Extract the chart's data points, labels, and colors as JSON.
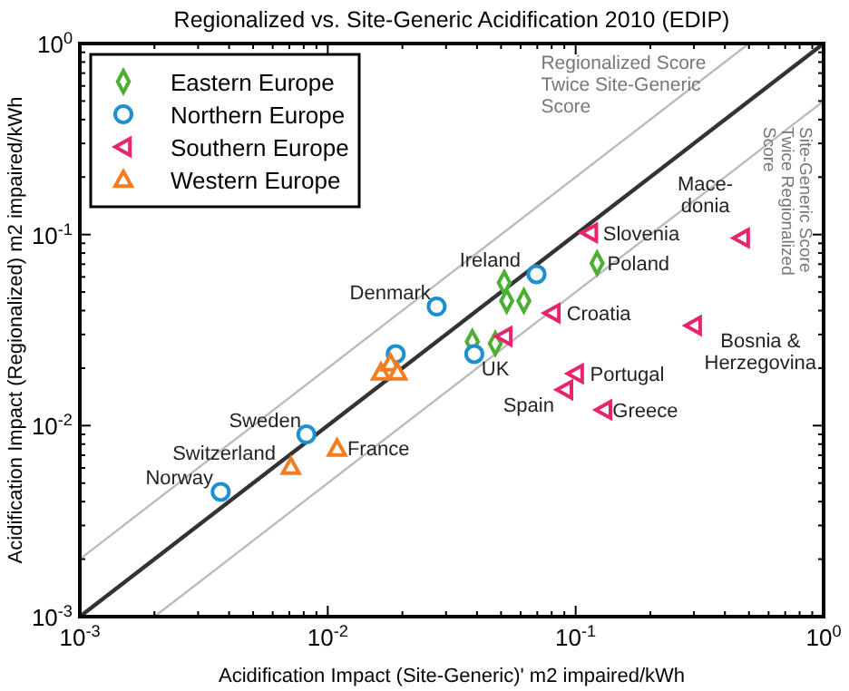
{
  "chart_data": {
    "type": "scatter",
    "title": "Regionalized vs. Site-Generic Acidification 2010 (EDIP)",
    "xlabel": "Acidification Impact (Site-Generic)' m2 impaired/kWh",
    "ylabel": "Acidification Impact (Regionalized) m2 impaired/kWh",
    "log": "xy",
    "xlim": [
      0.001,
      1
    ],
    "ylim": [
      0.001,
      1
    ],
    "xticks": [
      {
        "value": 0.001,
        "label": "10$^{-3}$"
      },
      {
        "value": 0.002,
        "label": null
      },
      {
        "value": 0.003,
        "label": null
      },
      {
        "value": 0.004,
        "label": null
      },
      {
        "value": 0.005,
        "label": null
      },
      {
        "value": 0.006,
        "label": null
      },
      {
        "value": 0.007,
        "label": null
      },
      {
        "value": 0.008,
        "label": null
      },
      {
        "value": 0.009,
        "label": null
      },
      {
        "value": 0.01,
        "label": "10$^{-2}$"
      },
      {
        "value": 0.02,
        "label": null
      },
      {
        "value": 0.03,
        "label": null
      },
      {
        "value": 0.04,
        "label": null
      },
      {
        "value": 0.05,
        "label": null
      },
      {
        "value": 0.06,
        "label": null
      },
      {
        "value": 0.07,
        "label": null
      },
      {
        "value": 0.08,
        "label": null
      },
      {
        "value": 0.09,
        "label": null
      },
      {
        "value": 0.1,
        "label": "10$^{-1}$"
      },
      {
        "value": 0.2,
        "label": null
      },
      {
        "value": 0.3,
        "label": null
      },
      {
        "value": 0.4,
        "label": null
      },
      {
        "value": 0.5,
        "label": null
      },
      {
        "value": 0.6,
        "label": null
      },
      {
        "value": 0.7,
        "label": null
      },
      {
        "value": 0.8,
        "label": null
      },
      {
        "value": 0.9,
        "label": null
      },
      {
        "value": 1,
        "label": "10$^{0}$"
      }
    ],
    "yticks": [
      {
        "value": 0.001,
        "label": "10$^{-3}$"
      },
      {
        "value": 0.002,
        "label": null
      },
      {
        "value": 0.003,
        "label": null
      },
      {
        "value": 0.004,
        "label": null
      },
      {
        "value": 0.005,
        "label": null
      },
      {
        "value": 0.006,
        "label": null
      },
      {
        "value": 0.007,
        "label": null
      },
      {
        "value": 0.008,
        "label": null
      },
      {
        "value": 0.009,
        "label": null
      },
      {
        "value": 0.01,
        "label": "10$^{-2}$"
      },
      {
        "value": 0.02,
        "label": null
      },
      {
        "value": 0.03,
        "label": null
      },
      {
        "value": 0.04,
        "label": null
      },
      {
        "value": 0.05,
        "label": null
      },
      {
        "value": 0.06,
        "label": null
      },
      {
        "value": 0.07,
        "label": null
      },
      {
        "value": 0.08,
        "label": null
      },
      {
        "value": 0.09,
        "label": null
      },
      {
        "value": 0.1,
        "label": "10$^{-1}$"
      },
      {
        "value": 0.2,
        "label": null
      },
      {
        "value": 0.3,
        "label": null
      },
      {
        "value": 0.4,
        "label": null
      },
      {
        "value": 0.5,
        "label": null
      },
      {
        "value": 0.6,
        "label": null
      },
      {
        "value": 0.7,
        "label": null
      },
      {
        "value": 0.8,
        "label": null
      },
      {
        "value": 0.9,
        "label": null
      },
      {
        "value": 1,
        "label": "10$^{0}$"
      }
    ],
    "grid": false,
    "legend": "top left",
    "series": [
      {
        "type": "line",
        "color": "#333333",
        "marker": "none",
        "line_style": "solid",
        "x": [
          0.001,
          1
        ],
        "values": [
          0.001,
          1
        ]
      },
      {
        "type": "line",
        "color": "#bbbbbb",
        "marker": "none",
        "line_style": "solid",
        "x": [
          0.001,
          0.5
        ],
        "values": [
          0.002,
          1
        ]
      },
      {
        "type": "line",
        "color": "#bbbbbb",
        "marker": "none",
        "line_style": "solid",
        "x": [
          0.002,
          1
        ],
        "values": [
          0.001,
          0.5
        ]
      },
      {
        "name": "Eastern Europe",
        "color": "#4caf32",
        "marker": "diamond",
        "x": [
          0.0515,
          0.0527,
          0.0618,
          0.0474,
          0.0383,
          0.122
        ],
        "values": [
          0.056,
          0.045,
          0.045,
          0.0269,
          0.0275,
          0.0708
        ]
      },
      {
        "name": "Northern Europe",
        "color": "#1e90d0",
        "marker": "circle",
        "x": [
          0.0037,
          0.0082,
          0.0188,
          0.0275,
          0.039,
          0.0695
        ],
        "values": [
          0.0045,
          0.009,
          0.0237,
          0.042,
          0.0237,
          0.062
        ]
      },
      {
        "name": "Southern Europe",
        "color": "#e8246e",
        "marker": "triangle-left",
        "x": [
          0.114,
          0.467,
          0.0805,
          0.299,
          0.1,
          0.0905,
          0.13,
          0.0515
        ],
        "values": [
          0.102,
          0.096,
          0.0388,
          0.0334,
          0.0187,
          0.0154,
          0.0121,
          0.0293
        ]
      },
      {
        "name": "Western Europe",
        "color": "#f57c20",
        "marker": "triangle",
        "x": [
          0.0164,
          0.0179,
          0.0191,
          0.0109,
          0.0071
        ],
        "values": [
          0.019,
          0.0212,
          0.019,
          0.0076,
          0.0061
        ]
      }
    ],
    "annotations": [
      "Regionalized Score\nTwice Site-Generic\nScore",
      "Site-Generic Score\nTwice Regionalized\nScore",
      {
        "text": "Norway",
        "x": 0.0037,
        "y": 0.0045
      },
      {
        "text": "Sweden",
        "x": 0.0082,
        "y": 0.009
      },
      {
        "text": "Denmark",
        "x": 0.0275,
        "y": 0.042
      },
      {
        "text": "UK",
        "x": 0.039,
        "y": 0.0237
      },
      {
        "text": "Ireland",
        "x": 0.0695,
        "y": 0.062
      },
      {
        "text": "Slovenia",
        "x": 0.114,
        "y": 0.102
      },
      {
        "text": "Mace-\ndonia",
        "x": 0.467,
        "y": 0.096
      },
      {
        "text": "Poland",
        "x": 0.122,
        "y": 0.0708
      },
      {
        "text": "Croatia",
        "x": 0.0805,
        "y": 0.0388
      },
      {
        "text": "Bosnia &\nHerzegovina",
        "x": 0.299,
        "y": 0.0334
      },
      {
        "text": "Portugal",
        "x": 0.1,
        "y": 0.0187
      },
      {
        "text": "Spain",
        "x": 0.0905,
        "y": 0.0154
      },
      {
        "text": "Greece",
        "x": 0.13,
        "y": 0.0121
      },
      {
        "text": "France",
        "x": 0.0109,
        "y": 0.0076
      },
      {
        "text": "Switzerland",
        "x": 0.0071,
        "y": 0.0061
      }
    ]
  }
}
